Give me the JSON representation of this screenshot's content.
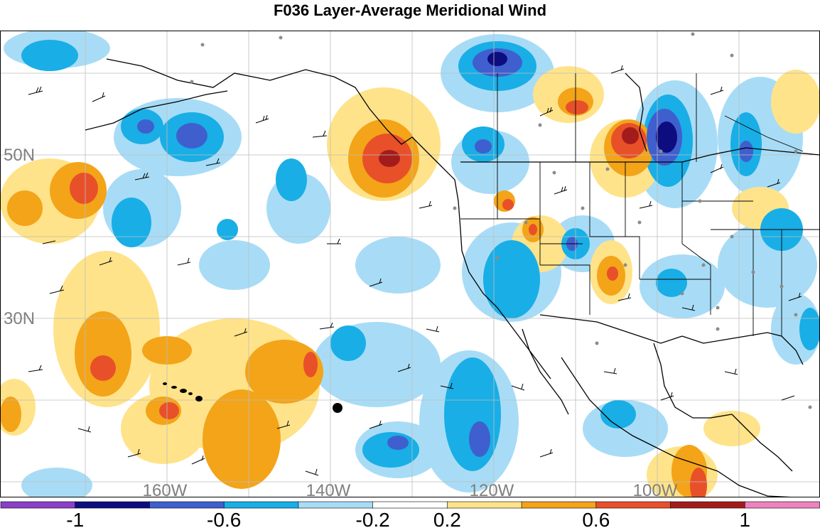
{
  "title": "F036 Layer-Average Meridional Wind",
  "lat_labels": [
    {
      "text": "50N"
    },
    {
      "text": "30N"
    }
  ],
  "lon_labels": [
    {
      "text": "160W"
    },
    {
      "text": "140W"
    },
    {
      "text": "120W"
    },
    {
      "text": "100W"
    }
  ],
  "colorbar": {
    "colors": [
      "#8a3fc7",
      "#0d0d80",
      "#3f5fce",
      "#19aee6",
      "#a8dcf6",
      "#ffffff",
      "#ffe38a",
      "#f3a419",
      "#e8502a",
      "#a31c1c",
      "#ee82c0"
    ],
    "tick_labels": [
      "-1",
      "-0.6",
      "-0.2",
      "0.2",
      "0.6",
      "1"
    ]
  },
  "colors": {
    "land_outline": "#000000",
    "grid": "#bdbdbd",
    "label_gray": "#7f7f7f",
    "station_dot": "#8c8c8c"
  }
}
